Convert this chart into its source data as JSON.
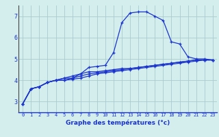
{
  "x": [
    0,
    1,
    2,
    3,
    4,
    5,
    6,
    7,
    8,
    9,
    10,
    11,
    12,
    13,
    14,
    15,
    16,
    17,
    18,
    19,
    20,
    21,
    22,
    23
  ],
  "line1": [
    2.9,
    3.6,
    3.7,
    3.9,
    4.0,
    4.1,
    4.1,
    4.3,
    4.6,
    4.65,
    4.7,
    5.3,
    6.7,
    7.15,
    7.2,
    7.2,
    7.0,
    6.8,
    5.8,
    5.7,
    5.1,
    5.0,
    5.0,
    4.95
  ],
  "line2": [
    2.9,
    3.6,
    3.7,
    3.9,
    4.0,
    4.1,
    4.2,
    4.3,
    4.4,
    4.4,
    4.45,
    4.5,
    4.55,
    4.55,
    4.6,
    4.65,
    4.7,
    4.75,
    4.8,
    4.85,
    4.9,
    4.95,
    4.95,
    4.95
  ],
  "line3": [
    2.9,
    3.6,
    3.7,
    3.9,
    4.0,
    4.0,
    4.1,
    4.2,
    4.3,
    4.35,
    4.4,
    4.45,
    4.5,
    4.55,
    4.6,
    4.65,
    4.7,
    4.75,
    4.8,
    4.85,
    4.9,
    4.95,
    4.95,
    4.95
  ],
  "line4": [
    2.9,
    3.6,
    3.7,
    3.9,
    4.0,
    4.0,
    4.05,
    4.1,
    4.2,
    4.3,
    4.35,
    4.4,
    4.45,
    4.5,
    4.55,
    4.6,
    4.65,
    4.7,
    4.75,
    4.8,
    4.85,
    4.9,
    4.95,
    4.95
  ],
  "line_color": "#1a33cc",
  "bg_color": "#d4eeee",
  "grid_color": "#aacccc",
  "xlabel": "Graphe des températures (°c)",
  "ylim": [
    2.5,
    7.5
  ],
  "xlim": [
    -0.5,
    23.5
  ],
  "yticks": [
    3,
    4,
    5,
    6,
    7
  ],
  "xticks": [
    0,
    1,
    2,
    3,
    4,
    5,
    6,
    7,
    8,
    9,
    10,
    11,
    12,
    13,
    14,
    15,
    16,
    17,
    18,
    19,
    20,
    21,
    22,
    23
  ]
}
